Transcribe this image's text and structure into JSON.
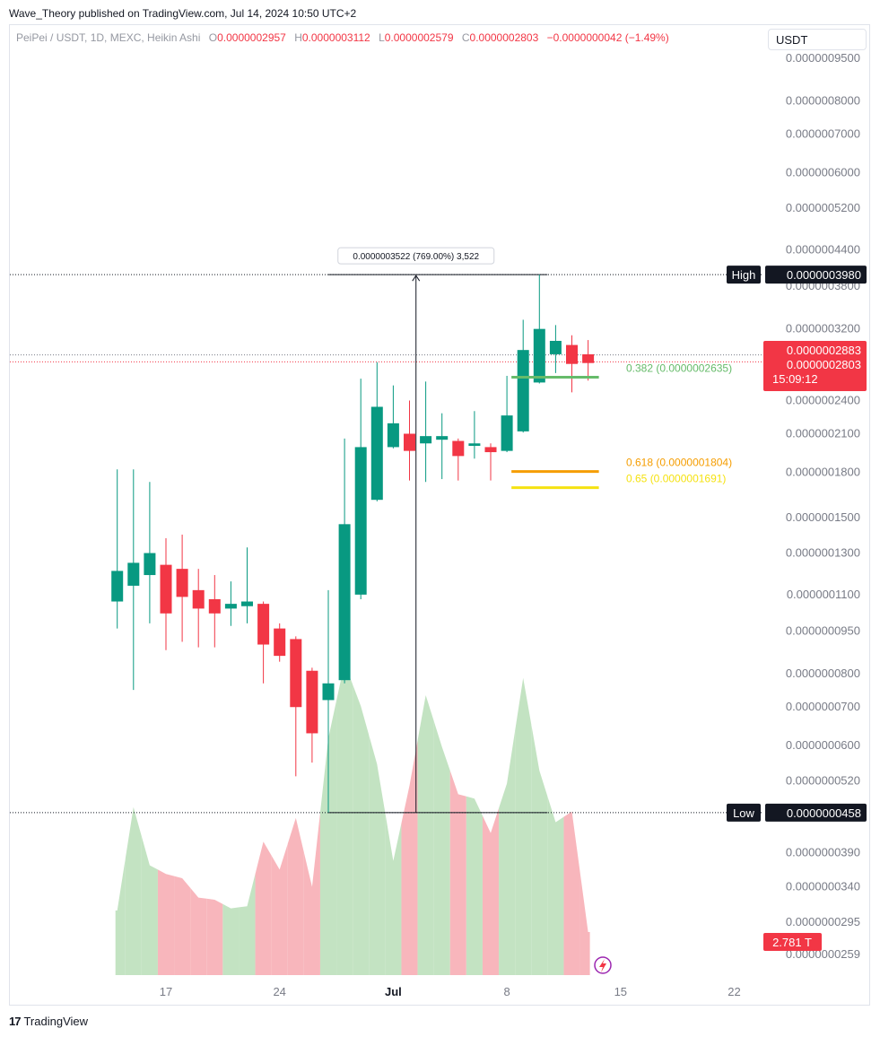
{
  "header": {
    "text": "Wave_Theory published on TradingView.com, Jul 14, 2024 10:50 UTC+2"
  },
  "legend": {
    "symbol": "PeiPei / USDT, 1D, MEXC, Heikin Ashi",
    "o_label": "O",
    "o": "0.0000002957",
    "h_label": "H",
    "h": "0.0000003112",
    "l_label": "L",
    "l": "0.0000002579",
    "c_label": "C",
    "c": "0.0000002803",
    "change": "−0.0000000042 (−1.49%)"
  },
  "currency_button": {
    "label": "USDT"
  },
  "footer": {
    "brand": "TradingView",
    "logo_text": "17"
  },
  "colors": {
    "up": "#089981",
    "down": "#f23645",
    "vol_up": "#c3e3c2",
    "vol_down": "#f8b6bc",
    "fib382": "#66bb6a",
    "fib618": "#f59d00",
    "fib65": "#f5e211"
  },
  "chart_data": {
    "type": "candlestick",
    "title": "PeiPei / USDT, 1D, MEXC, Heikin Ashi",
    "y_scale": "log",
    "ylim": [
      2.4e-08,
      1.1e-06
    ],
    "y_ticks": [
      "0.0000009500",
      "0.0000008000",
      "0.0000007000",
      "0.0000006000",
      "0.0000005200",
      "0.0000004400",
      "0.0000003800",
      "0.0000003200",
      "0.0000002400",
      "0.0000002100",
      "0.0000001800",
      "0.0000001500",
      "0.0000001300",
      "0.0000001100",
      "0.0000000950",
      "0.0000000800",
      "0.0000000700",
      "0.0000000600",
      "0.0000000520",
      "0.0000000390",
      "0.0000000340",
      "0.0000000295",
      "0.0000000259"
    ],
    "y_tick_values": [
      9.5e-07,
      8e-07,
      7e-07,
      6e-07,
      5.2e-07,
      4.4e-07,
      3.8e-07,
      3.2e-07,
      2.4e-07,
      2.1e-07,
      1.8e-07,
      1.5e-07,
      1.3e-07,
      1.1e-07,
      9.5e-08,
      8e-08,
      7e-08,
      6e-08,
      5.2e-08,
      3.9e-08,
      3.4e-08,
      2.95e-08,
      2.59e-08
    ],
    "x_ticks": [
      {
        "label": "17",
        "day": 17
      },
      {
        "label": "24",
        "day": 24
      },
      {
        "label": "Jul",
        "day": 31
      },
      {
        "label": "8",
        "day": 38
      },
      {
        "label": "15",
        "day": 45
      },
      {
        "label": "22",
        "day": 52
      }
    ],
    "candles": [
      {
        "date": "2024-06-14",
        "o": 1.07e-07,
        "h": 1.82e-07,
        "l": 9.6e-08,
        "c": 1.21e-07
      },
      {
        "date": "2024-06-15",
        "o": 1.14e-07,
        "h": 1.82e-07,
        "l": 7.5e-08,
        "c": 1.25e-07
      },
      {
        "date": "2024-06-16",
        "o": 1.19e-07,
        "h": 1.73e-07,
        "l": 9.8e-08,
        "c": 1.3e-07
      },
      {
        "date": "2024-06-17",
        "o": 1.24e-07,
        "h": 1.38e-07,
        "l": 8.8e-08,
        "c": 1.02e-07
      },
      {
        "date": "2024-06-18",
        "o": 1.22e-07,
        "h": 1.4e-07,
        "l": 9.1e-08,
        "c": 1.09e-07
      },
      {
        "date": "2024-06-19",
        "o": 1.12e-07,
        "h": 1.22e-07,
        "l": 8.9e-08,
        "c": 1.04e-07
      },
      {
        "date": "2024-06-20",
        "o": 1.08e-07,
        "h": 1.19e-07,
        "l": 8.9e-08,
        "c": 1.02e-07
      },
      {
        "date": "2024-06-21",
        "o": 1.04e-07,
        "h": 1.16e-07,
        "l": 9.7e-08,
        "c": 1.06e-07
      },
      {
        "date": "2024-06-22",
        "o": 1.05e-07,
        "h": 1.33e-07,
        "l": 9.8e-08,
        "c": 1.07e-07
      },
      {
        "date": "2024-06-23",
        "o": 1.06e-07,
        "h": 1.07e-07,
        "l": 7.7e-08,
        "c": 9e-08
      },
      {
        "date": "2024-06-24",
        "o": 9.6e-08,
        "h": 9.8e-08,
        "l": 8.4e-08,
        "c": 8.6e-08
      },
      {
        "date": "2024-06-25",
        "o": 9.2e-08,
        "h": 9.3e-08,
        "l": 5.3e-08,
        "c": 7e-08
      },
      {
        "date": "2024-06-26",
        "o": 8.1e-08,
        "h": 8.2e-08,
        "l": 5.6e-08,
        "c": 6.3e-08
      },
      {
        "date": "2024-06-27",
        "o": 7.2e-08,
        "h": 1.12e-07,
        "l": 4.58e-08,
        "c": 7.7e-08
      },
      {
        "date": "2024-06-28",
        "o": 7.8e-08,
        "h": 2.06e-07,
        "l": 7.7e-08,
        "c": 1.46e-07
      },
      {
        "date": "2024-06-29",
        "o": 1.1e-07,
        "h": 2.62e-07,
        "l": 1.08e-07,
        "c": 1.99e-07
      },
      {
        "date": "2024-06-30",
        "o": 1.61e-07,
        "h": 2.8e-07,
        "l": 1.6e-07,
        "c": 2.34e-07
      },
      {
        "date": "2024-07-01",
        "o": 1.99e-07,
        "h": 2.55e-07,
        "l": 1.98e-07,
        "c": 2.19e-07
      },
      {
        "date": "2024-07-02",
        "o": 2.1e-07,
        "h": 2.4e-07,
        "l": 1.74e-07,
        "c": 1.96e-07
      },
      {
        "date": "2024-07-03",
        "o": 2.02e-07,
        "h": 2.59e-07,
        "l": 1.73e-07,
        "c": 2.08e-07
      },
      {
        "date": "2024-07-04",
        "o": 2.05e-07,
        "h": 2.28e-07,
        "l": 1.75e-07,
        "c": 2.08e-07
      },
      {
        "date": "2024-07-05",
        "o": 2.04e-07,
        "h": 2.06e-07,
        "l": 1.74e-07,
        "c": 1.92e-07
      },
      {
        "date": "2024-07-06",
        "o": 2e-07,
        "h": 2.3e-07,
        "l": 1.9e-07,
        "c": 2.02e-07
      },
      {
        "date": "2024-07-07",
        "o": 1.99e-07,
        "h": 2.02e-07,
        "l": 1.74e-07,
        "c": 1.95e-07
      },
      {
        "date": "2024-07-08",
        "o": 1.96e-07,
        "h": 2.65e-07,
        "l": 1.95e-07,
        "c": 2.26e-07
      },
      {
        "date": "2024-07-09",
        "o": 2.12e-07,
        "h": 3.32e-07,
        "l": 2.11e-07,
        "c": 2.94e-07
      },
      {
        "date": "2024-07-10",
        "o": 2.58e-07,
        "h": 3.98e-07,
        "l": 2.57e-07,
        "c": 3.2e-07
      },
      {
        "date": "2024-07-11",
        "o": 2.89e-07,
        "h": 3.25e-07,
        "l": 2.68e-07,
        "c": 3.05e-07
      },
      {
        "date": "2024-07-12",
        "o": 3e-07,
        "h": 3.12e-07,
        "l": 2.48e-07,
        "c": 2.78e-07
      },
      {
        "date": "2024-07-13",
        "o": 2.89e-07,
        "h": 3.06e-07,
        "l": 2.6e-07,
        "c": 2.79e-07
      }
    ],
    "volume": {
      "unit_note": "relative",
      "values": [
        0.3,
        0.78,
        0.51,
        0.47,
        0.45,
        0.36,
        0.35,
        0.31,
        0.32,
        0.62,
        0.49,
        0.73,
        0.41,
        1.1,
        1.45,
        1.25,
        0.98,
        0.53,
        0.88,
        1.3,
        1.06,
        0.84,
        0.82,
        0.66,
        0.89,
        1.38,
        0.95,
        0.71,
        0.76,
        0.2
      ],
      "last_label": "2.781 T"
    },
    "high_line": {
      "label": "High",
      "value": "0.0000003980",
      "value_num": 3.98e-07
    },
    "low_line": {
      "label": "Low",
      "value": "0.0000000458",
      "value_num": 4.58e-08
    },
    "price_tags": [
      "0.0000002883",
      "0.0000002803",
      "15:09:12"
    ],
    "price_line_values": [
      2.883e-07,
      2.803e-07
    ],
    "measure": {
      "label": "0.0000003522 (769.00%) 3,522",
      "from_day": 27,
      "to_day": 37
    },
    "fib_levels": [
      {
        "label": "0.382 (0.0000002635)",
        "value": 2.635e-07,
        "color_key": "fib382",
        "from_day": 38.5,
        "to_day": 43
      },
      {
        "label": "0.618 (0.0000001804)",
        "value": 1.804e-07,
        "color_key": "fib618",
        "from_day": 38.5,
        "to_day": 43
      },
      {
        "label": "0.65 (0.0000001691)",
        "value": 1.691e-07,
        "color_key": "fib65",
        "from_day": 38.5,
        "to_day": 43
      }
    ]
  }
}
